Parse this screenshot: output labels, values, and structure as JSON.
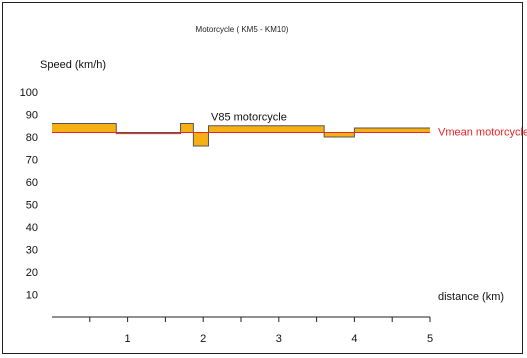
{
  "chart_data": {
    "type": "area",
    "title": "Motorcycle ( KM5 - KM10)",
    "ylabel": "Speed (km/h)",
    "xlabel": "distance (km)",
    "xlim": [
      0,
      5
    ],
    "ylim": [
      0,
      105
    ],
    "x_ticks": [
      1,
      2,
      3,
      4,
      5
    ],
    "y_ticks": [
      10,
      20,
      30,
      40,
      50,
      60,
      70,
      80,
      90,
      100
    ],
    "grid": false,
    "series": [
      {
        "name": "V85 motorcycle",
        "label_color": "#111111",
        "x": [
          0,
          0.85,
          0.85,
          1.7,
          1.7,
          1.87,
          1.87,
          2.07,
          2.07,
          3.6,
          3.6,
          4.0,
          4.0,
          5.0
        ],
        "y": [
          86,
          86,
          82,
          82,
          86,
          86,
          76,
          76,
          85,
          85,
          80,
          80,
          84,
          84
        ]
      },
      {
        "name": "Vmean motorcycle",
        "label_color": "#e8252a",
        "x": [
          0,
          0.85,
          0.85,
          1.7,
          1.7,
          1.87,
          1.87,
          2.07,
          2.07,
          3.6,
          3.6,
          4.0,
          4.0,
          5.0
        ],
        "y": [
          82,
          82,
          81.5,
          81.5,
          82,
          82,
          82,
          82,
          82,
          82,
          82,
          82,
          82,
          82
        ]
      }
    ],
    "fill_color": "#f5b014",
    "line_color": "#555555",
    "vmean_line_color": "#e8252a"
  }
}
